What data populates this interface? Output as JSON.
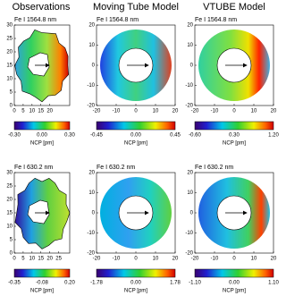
{
  "columns": [
    "Observations",
    "Moving Tube Model",
    "VTUBE Model"
  ],
  "rows": [
    {
      "panels": [
        {
          "line": "Fe I 1564.8 nm",
          "xticks": [
            "0",
            "5",
            "10",
            "15",
            "20"
          ],
          "yticks": [
            "0",
            "5",
            "10",
            "15",
            "20",
            "25",
            "30"
          ],
          "cbticks": [
            "-0.30",
            "0.00",
            "0.30"
          ],
          "cblabel": "NCP [pm]"
        },
        {
          "line": "Fe I 1564.8 nm",
          "xticks": [
            "-20",
            "-10",
            "0",
            "10",
            "20"
          ],
          "yticks": [
            "-20",
            "-10",
            "0",
            "10",
            "20"
          ],
          "cbticks": [
            "-0.45",
            "0.00",
            "0.45"
          ],
          "cblabel": "NCP [pm]"
        },
        {
          "line": "Fe I 1564.8 nm",
          "xticks": [
            "-20",
            "-10",
            "0",
            "10",
            "20"
          ],
          "yticks": [
            "-20",
            "-10",
            "0",
            "10",
            "20"
          ],
          "cbticks": [
            "-0.60",
            "0.30",
            "1.20"
          ],
          "cblabel": "NCP [pm]"
        }
      ]
    },
    {
      "panels": [
        {
          "line": "Fe I 630.2 nm",
          "xticks": [
            "0",
            "5",
            "10",
            "15",
            "20",
            "25"
          ],
          "yticks": [
            "0",
            "5",
            "10",
            "15",
            "20",
            "25",
            "30"
          ],
          "cbticks": [
            "-0.35",
            "-0.08",
            "0.20"
          ],
          "cblabel": "NCP [pm]"
        },
        {
          "line": "Fe I 630.2 nm",
          "xticks": [
            "-20",
            "-10",
            "0",
            "10",
            "20"
          ],
          "yticks": [
            "-20",
            "-10",
            "0",
            "10",
            "20"
          ],
          "cbticks": [
            "-1.78",
            "0.00",
            "1.78"
          ],
          "cblabel": "NCP [pm]"
        },
        {
          "line": "Fe I 630.2 nm",
          "xticks": [
            "-20",
            "-10",
            "0",
            "10",
            "20"
          ],
          "yticks": [
            "-20",
            "-10",
            "0",
            "10",
            "20"
          ],
          "cbticks": [
            "-1.10",
            "0.00",
            "1.10"
          ],
          "cblabel": "NCP [pm]"
        }
      ]
    }
  ]
}
